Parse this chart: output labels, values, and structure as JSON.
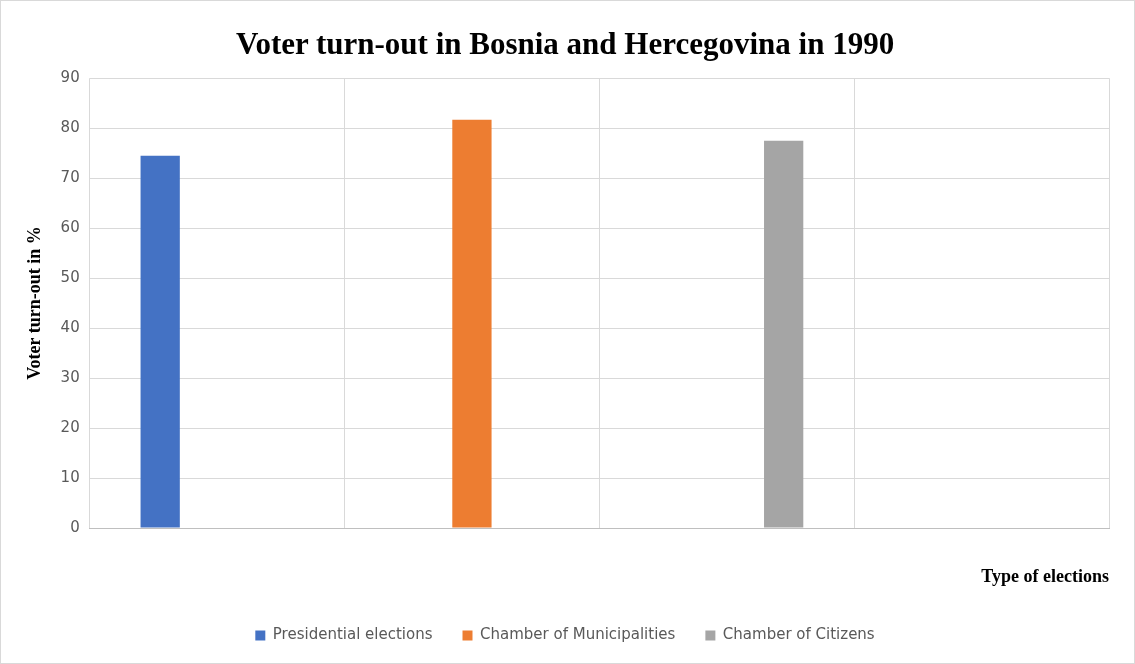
{
  "chart_data": {
    "type": "bar",
    "title": "Voter turn-out in Bosnia and Hercegovina in 1990",
    "xlabel": "Type of elections",
    "ylabel": "Voter turn-out in %",
    "categories": [
      null,
      null,
      null,
      null
    ],
    "series": [
      {
        "name": "Presidential elections",
        "color": "#4472c4",
        "values": [
          74.5,
          null,
          null,
          null
        ]
      },
      {
        "name": "Chamber of Municipalities",
        "color": "#ed7d31",
        "values": [
          null,
          81.7,
          null,
          null
        ]
      },
      {
        "name": "Chamber of Citizens",
        "color": "#a5a5a5",
        "values": [
          null,
          null,
          77.5,
          null
        ]
      }
    ],
    "ylim": [
      0,
      90
    ],
    "yticks": [
      0,
      10,
      20,
      30,
      40,
      50,
      60,
      70,
      80,
      90
    ],
    "grid": true,
    "legend": "bottom"
  }
}
